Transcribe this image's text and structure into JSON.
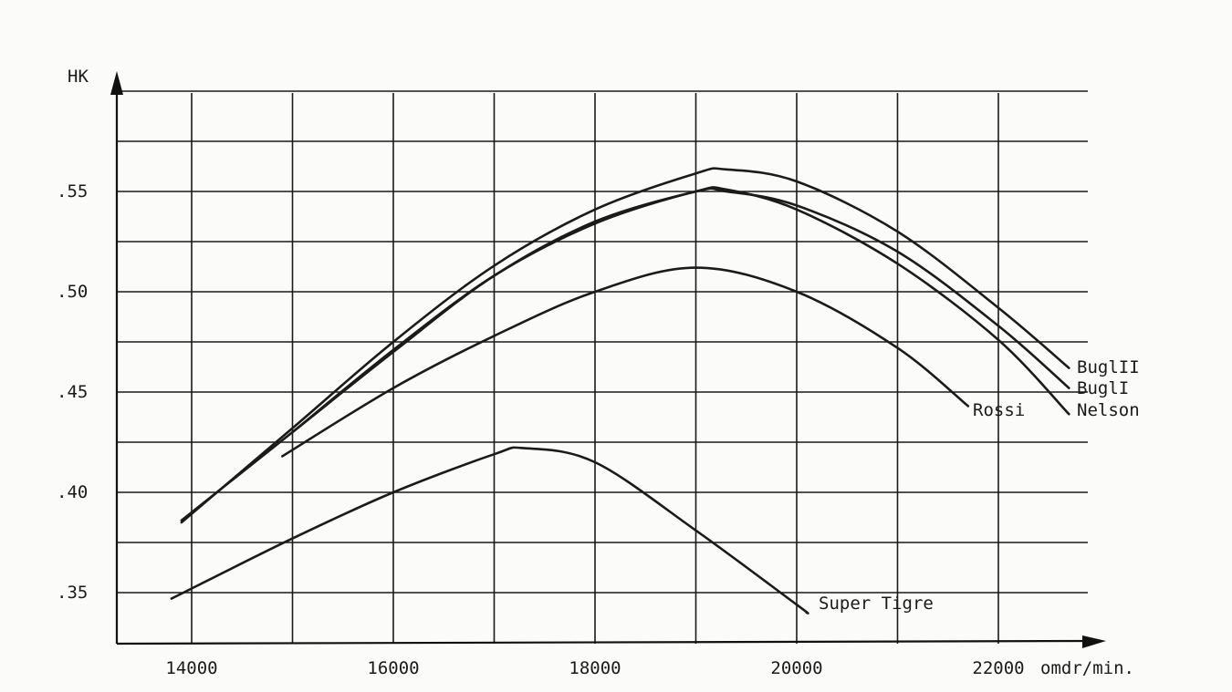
{
  "chart_data": {
    "type": "line",
    "ylabel": "HK",
    "xlabel": "omdr/min.",
    "xlim": [
      13200,
      23300
    ],
    "ylim": [
      0.325,
      0.605
    ],
    "x_ticks": [
      {
        "value": 14000,
        "label": "14000"
      },
      {
        "value": 16000,
        "label": "16000"
      },
      {
        "value": 18000,
        "label": "18000"
      },
      {
        "value": 20000,
        "label": "20000"
      },
      {
        "value": 22000,
        "label": "22000"
      }
    ],
    "y_ticks": [
      {
        "value": 0.35,
        "label": ".35"
      },
      {
        "value": 0.4,
        "label": ".40"
      },
      {
        "value": 0.45,
        "label": ".45"
      },
      {
        "value": 0.5,
        "label": ".50"
      },
      {
        "value": 0.55,
        "label": ".55"
      }
    ],
    "grid": true,
    "series": [
      {
        "name": "BuglII",
        "x": [
          13900,
          15000,
          16000,
          17000,
          18000,
          19000,
          19300,
          20000,
          21000,
          22000,
          22700
        ],
        "y": [
          0.385,
          0.432,
          0.475,
          0.513,
          0.541,
          0.559,
          0.561,
          0.555,
          0.53,
          0.492,
          0.462
        ]
      },
      {
        "name": "BuglI",
        "x": [
          15000,
          16000,
          17000,
          18000,
          19000,
          19300,
          20000,
          21000,
          22000,
          22700
        ],
        "y": [
          0.43,
          0.471,
          0.508,
          0.534,
          0.55,
          0.55,
          0.543,
          0.52,
          0.483,
          0.452
        ]
      },
      {
        "name": "Nelson",
        "x": [
          13900,
          15000,
          16000,
          17000,
          18000,
          19000,
          19300,
          20000,
          21000,
          22000,
          22700
        ],
        "y": [
          0.386,
          0.43,
          0.47,
          0.508,
          0.535,
          0.55,
          0.551,
          0.541,
          0.514,
          0.476,
          0.439
        ]
      },
      {
        "name": "Rossi",
        "x": [
          14900,
          16000,
          17000,
          18000,
          19000,
          20000,
          21000,
          21700
        ],
        "y": [
          0.418,
          0.452,
          0.478,
          0.5,
          0.512,
          0.5,
          0.472,
          0.443
        ]
      },
      {
        "name": "Super Tigre",
        "x": [
          13800,
          15000,
          16000,
          17000,
          17300,
          18000,
          19000,
          20000,
          20100
        ],
        "y": [
          0.347,
          0.377,
          0.4,
          0.419,
          0.422,
          0.415,
          0.381,
          0.344,
          0.34
        ]
      }
    ]
  }
}
